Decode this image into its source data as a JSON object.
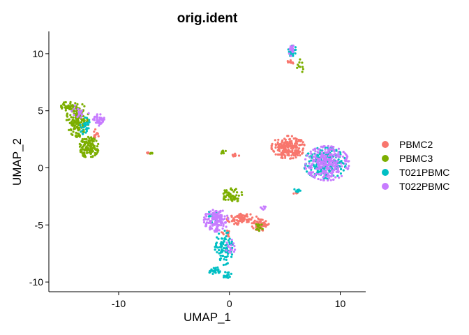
{
  "chart_data": {
    "type": "scatter",
    "title": "orig.ident",
    "xlabel": "UMAP_1",
    "ylabel": "UMAP_2",
    "xlim": [
      -16.3,
      12.3
    ],
    "ylim": [
      -10.85,
      11.95
    ],
    "x_ticks": [
      -10,
      0,
      10
    ],
    "y_ticks": [
      -10,
      -5,
      0,
      5,
      10
    ],
    "grid": false,
    "legend_position": "right",
    "series": [
      {
        "name": "PBMC2",
        "color": "#F8766D",
        "clusters": [
          {
            "cx": 5.3,
            "cy": 1.8,
            "rx": 1.5,
            "ry": 1.0,
            "n": 220
          },
          {
            "cx": 1.2,
            "cy": -4.5,
            "rx": 1.4,
            "ry": 0.5,
            "n": 90
          },
          {
            "cx": 2.8,
            "cy": -5.0,
            "rx": 0.8,
            "ry": 0.5,
            "n": 60
          },
          {
            "cx": -12.0,
            "cy": 3.0,
            "rx": 0.3,
            "ry": 0.4,
            "n": 12
          },
          {
            "cx": 5.5,
            "cy": 9.3,
            "rx": 0.4,
            "ry": 0.2,
            "n": 12
          },
          {
            "cx": 0.7,
            "cy": 1.1,
            "rx": 0.5,
            "ry": 0.15,
            "n": 10
          },
          {
            "cx": -7.3,
            "cy": 1.3,
            "rx": 0.3,
            "ry": 0.08,
            "n": 4
          },
          {
            "cx": 6.0,
            "cy": -2.1,
            "rx": 0.3,
            "ry": 0.2,
            "n": 5
          },
          {
            "cx": -0.2,
            "cy": -5.8,
            "rx": 0.6,
            "ry": 0.3,
            "n": 12
          }
        ]
      },
      {
        "name": "PBMC3",
        "color": "#7CAE00",
        "clusters": [
          {
            "cx": -13.7,
            "cy": 4.2,
            "rx": 1.0,
            "ry": 1.5,
            "n": 170
          },
          {
            "cx": -12.7,
            "cy": 1.8,
            "rx": 0.9,
            "ry": 0.9,
            "n": 120
          },
          {
            "cx": -14.6,
            "cy": 5.4,
            "rx": 0.6,
            "ry": 0.4,
            "n": 40
          },
          {
            "cx": 0.2,
            "cy": -2.4,
            "rx": 1.0,
            "ry": 0.6,
            "n": 60
          },
          {
            "cx": 6.4,
            "cy": 8.9,
            "rx": 0.3,
            "ry": 0.6,
            "n": 10
          },
          {
            "cx": -7.2,
            "cy": 1.3,
            "rx": 0.3,
            "ry": 0.08,
            "n": 4
          },
          {
            "cx": -0.6,
            "cy": 1.4,
            "rx": 0.4,
            "ry": 0.15,
            "n": 10
          },
          {
            "cx": 2.8,
            "cy": -5.2,
            "rx": 0.5,
            "ry": 0.4,
            "n": 15
          }
        ]
      },
      {
        "name": "T021PBMC",
        "color": "#00BFC4",
        "clusters": [
          {
            "cx": 8.6,
            "cy": 0.4,
            "rx": 1.9,
            "ry": 1.4,
            "n": 220
          },
          {
            "cx": -0.5,
            "cy": -7.0,
            "rx": 0.8,
            "ry": 1.5,
            "n": 90
          },
          {
            "cx": -1.3,
            "cy": -9.0,
            "rx": 0.6,
            "ry": 0.3,
            "n": 30
          },
          {
            "cx": -0.2,
            "cy": -9.4,
            "rx": 0.4,
            "ry": 0.3,
            "n": 15
          },
          {
            "cx": 5.7,
            "cy": 10.2,
            "rx": 0.4,
            "ry": 0.5,
            "n": 25
          },
          {
            "cx": -13.0,
            "cy": 3.6,
            "rx": 0.5,
            "ry": 0.8,
            "n": 25
          },
          {
            "cx": 6.1,
            "cy": -2.0,
            "rx": 0.3,
            "ry": 0.2,
            "n": 8
          },
          {
            "cx": -1.5,
            "cy": -4.3,
            "rx": 0.5,
            "ry": 0.6,
            "n": 20
          }
        ]
      },
      {
        "name": "T022PBMC",
        "color": "#C77CFF",
        "clusters": [
          {
            "cx": 8.8,
            "cy": 0.4,
            "rx": 2.0,
            "ry": 1.5,
            "n": 260
          },
          {
            "cx": -1.2,
            "cy": -4.6,
            "rx": 1.1,
            "ry": 1.0,
            "n": 140
          },
          {
            "cx": -11.8,
            "cy": 4.2,
            "rx": 0.6,
            "ry": 0.5,
            "n": 40
          },
          {
            "cx": 5.6,
            "cy": 10.4,
            "rx": 0.3,
            "ry": 0.6,
            "n": 18
          },
          {
            "cx": -13.5,
            "cy": 4.8,
            "rx": 0.8,
            "ry": 0.8,
            "n": 20
          },
          {
            "cx": 0.1,
            "cy": -7.0,
            "rx": 0.4,
            "ry": 0.8,
            "n": 15
          },
          {
            "cx": 3.0,
            "cy": -3.5,
            "rx": 0.3,
            "ry": 0.3,
            "n": 6
          }
        ]
      }
    ]
  }
}
